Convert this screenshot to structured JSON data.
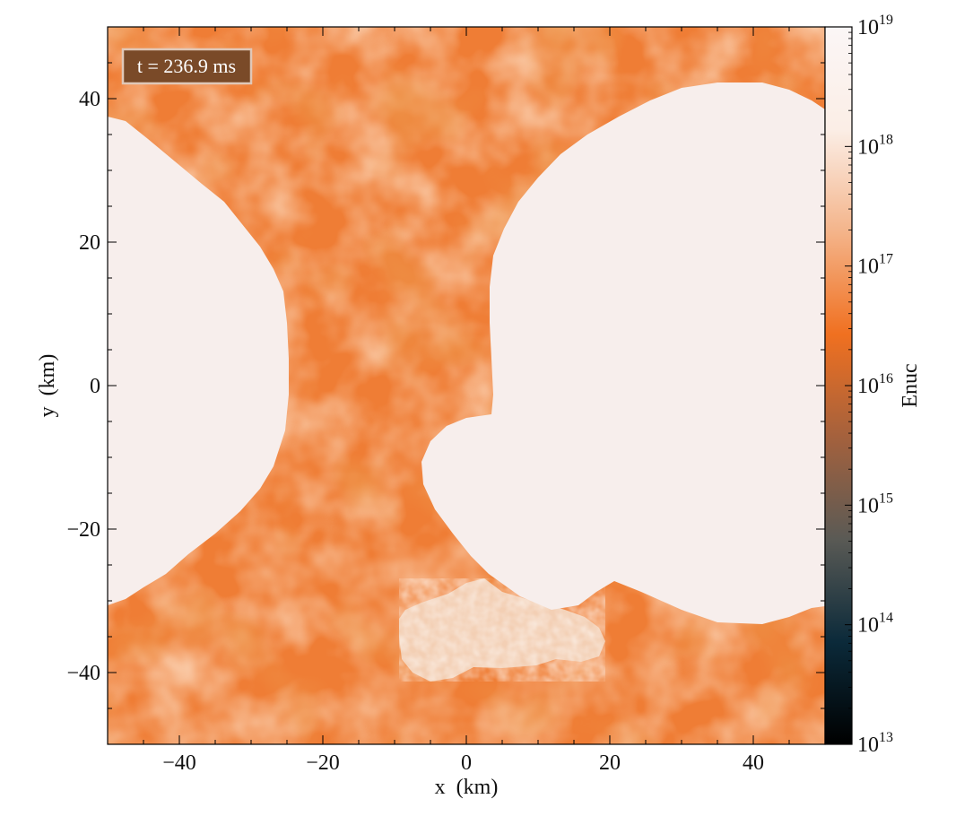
{
  "chart_data": {
    "type": "heatmap",
    "time_label": "t = 236.9 ms",
    "xlabel": "x  (km)",
    "ylabel": "y  (km)",
    "colorbar_label": "Enuc",
    "xlim": [
      -50,
      50
    ],
    "ylim": [
      -50,
      50
    ],
    "x_ticks": [
      -40,
      -20,
      0,
      20,
      40
    ],
    "y_ticks": [
      -40,
      -20,
      0,
      20,
      40
    ],
    "x_tick_labels": [
      "−40",
      "−20",
      "0",
      "20",
      "40"
    ],
    "y_tick_labels": [
      "−40",
      "−20",
      "0",
      "20",
      "40"
    ],
    "colorbar": {
      "scale": "log",
      "range": [
        10000000000000.0,
        1e+19
      ],
      "tick_exponents": [
        13,
        14,
        15,
        16,
        17,
        18,
        19
      ],
      "tick_base": "10",
      "colormap_stops": [
        "#000000",
        "#0b2a3a",
        "#5a5a55",
        "#a4613d",
        "#f07020",
        "#f4b48a",
        "#fbeee6",
        "#fbf6f6"
      ]
    },
    "colors": {
      "background_field": "#ef7d35",
      "saturated_region": "#f7eeec",
      "hot_spot": "#f3cfb4",
      "label_box": "#7a4a28"
    },
    "regions": [
      {
        "name": "left saturated lobe",
        "approx_x_km": [
          -50,
          -25
        ],
        "approx_y_km": [
          -30,
          37
        ],
        "value": "≥ 1e19"
      },
      {
        "name": "right saturated lobe",
        "approx_x_km": [
          -6,
          50
        ],
        "approx_y_km": [
          -33,
          42
        ],
        "value": "≥ 1e19"
      },
      {
        "name": "hot spot",
        "approx_x_km": [
          -10,
          19
        ],
        "approx_y_km": [
          -41,
          -27
        ],
        "value": "~1e18"
      }
    ],
    "background_value": "~1e17"
  }
}
